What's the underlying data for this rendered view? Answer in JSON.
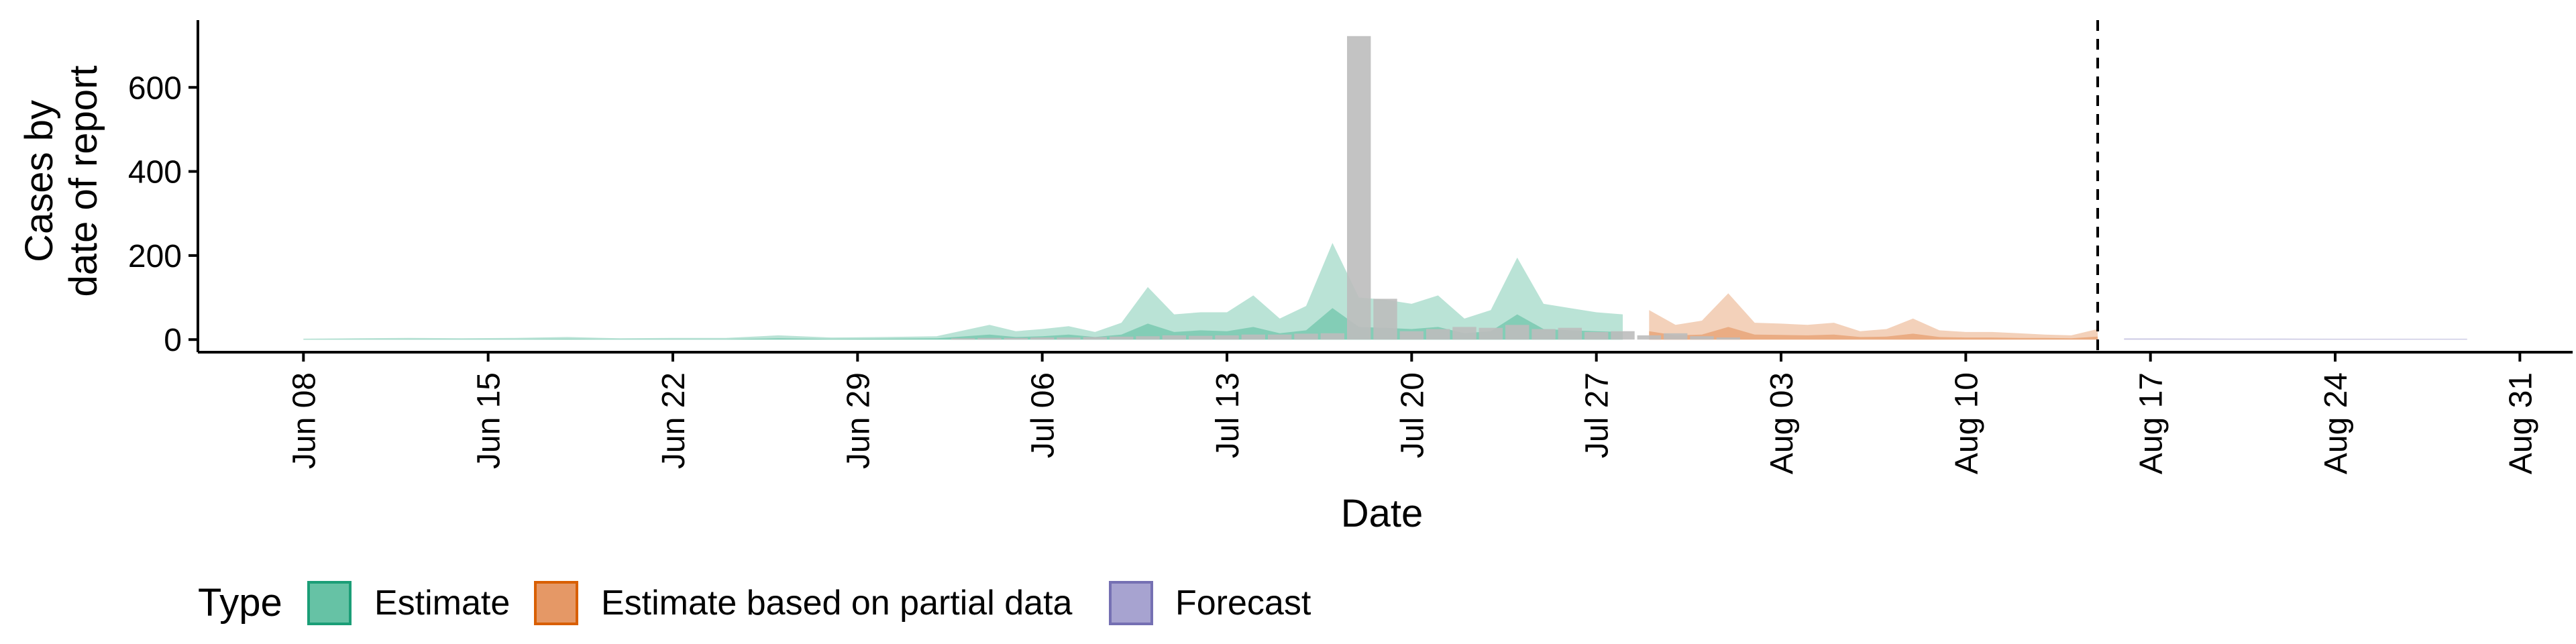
{
  "chart_data": {
    "type": "area",
    "xlabel": "Date",
    "ylabel": [
      "Cases by",
      "date of report"
    ],
    "ylim": [
      -30,
      760
    ],
    "yticks": [
      0,
      200,
      400,
      600
    ],
    "xlim": [
      "2020-06-04",
      "2020-09-02"
    ],
    "xtick_dates": [
      "2020-06-08",
      "2020-06-15",
      "2020-06-22",
      "2020-06-29",
      "2020-07-06",
      "2020-07-13",
      "2020-07-20",
      "2020-07-27",
      "2020-08-03",
      "2020-08-10",
      "2020-08-17",
      "2020-08-24",
      "2020-08-31"
    ],
    "xtick_labels": [
      "Jun 08",
      "Jun 15",
      "Jun 22",
      "Jun 29",
      "Jul 06",
      "Jul 13",
      "Jul 20",
      "Jul 27",
      "Aug 03",
      "Aug 10",
      "Aug 17",
      "Aug 24",
      "Aug 31"
    ],
    "forecast_date": "2020-08-15",
    "grid": false,
    "legend_position": "bottom-left",
    "legend": {
      "title": "Type",
      "items": [
        {
          "label": "Estimate",
          "fill": "#66c2a5",
          "stroke": "#1b9e77"
        },
        {
          "label": "Estimate based on partial data",
          "fill": "#e59866",
          "stroke": "#d95f02"
        },
        {
          "label": "Forecast",
          "fill": "#a7a3d0",
          "stroke": "#7570b3"
        }
      ]
    },
    "reported_cases": {
      "color": "#bdbdbd",
      "dates": [
        "2020-07-03",
        "2020-07-04",
        "2020-07-05",
        "2020-07-06",
        "2020-07-07",
        "2020-07-08",
        "2020-07-09",
        "2020-07-10",
        "2020-07-11",
        "2020-07-12",
        "2020-07-13",
        "2020-07-14",
        "2020-07-15",
        "2020-07-16",
        "2020-07-17",
        "2020-07-18",
        "2020-07-19",
        "2020-07-20",
        "2020-07-21",
        "2020-07-22",
        "2020-07-23",
        "2020-07-24",
        "2020-07-25",
        "2020-07-26",
        "2020-07-27",
        "2020-07-28",
        "2020-07-29",
        "2020-07-30",
        "2020-07-31",
        "2020-08-01"
      ],
      "values": [
        3,
        4,
        4,
        5,
        5,
        6,
        7,
        8,
        10,
        9,
        10,
        12,
        12,
        14,
        15,
        722,
        97,
        20,
        25,
        30,
        28,
        35,
        25,
        28,
        18,
        20,
        10,
        15,
        8,
        5
      ]
    },
    "series": [
      {
        "name": "Estimate",
        "dates": [
          "2020-06-08",
          "2020-06-10",
          "2020-06-12",
          "2020-06-14",
          "2020-06-16",
          "2020-06-18",
          "2020-06-20",
          "2020-06-22",
          "2020-06-24",
          "2020-06-26",
          "2020-06-28",
          "2020-06-30",
          "2020-07-02",
          "2020-07-04",
          "2020-07-05",
          "2020-07-06",
          "2020-07-07",
          "2020-07-08",
          "2020-07-09",
          "2020-07-10",
          "2020-07-11",
          "2020-07-12",
          "2020-07-13",
          "2020-07-14",
          "2020-07-15",
          "2020-07-16",
          "2020-07-17",
          "2020-07-18",
          "2020-07-19",
          "2020-07-20",
          "2020-07-21",
          "2020-07-22",
          "2020-07-23",
          "2020-07-24",
          "2020-07-25",
          "2020-07-26",
          "2020-07-27",
          "2020-07-28"
        ],
        "upper": [
          2,
          3,
          4,
          3,
          4,
          6,
          3,
          4,
          4,
          10,
          5,
          6,
          8,
          35,
          20,
          25,
          32,
          18,
          40,
          125,
          60,
          65,
          65,
          105,
          50,
          80,
          230,
          100,
          95,
          85,
          105,
          50,
          70,
          195,
          85,
          75,
          65,
          60
        ],
        "median": [
          0.5,
          0.8,
          1,
          1,
          1,
          1.5,
          1,
          1,
          1,
          3,
          1.5,
          2,
          3,
          12,
          6,
          8,
          12,
          6,
          12,
          38,
          18,
          22,
          20,
          30,
          15,
          22,
          75,
          30,
          28,
          25,
          30,
          15,
          20,
          60,
          25,
          22,
          20,
          18
        ],
        "lower": [
          0,
          0,
          0,
          0,
          0,
          0,
          0,
          0,
          0,
          0,
          0,
          0,
          0,
          0,
          0,
          0,
          0,
          0,
          0,
          0,
          0,
          0,
          0,
          0,
          0,
          0,
          0,
          0,
          0,
          0,
          0,
          0,
          0,
          0,
          0,
          0,
          0,
          0
        ]
      },
      {
        "name": "Estimate based on partial data",
        "dates": [
          "2020-07-29",
          "2020-07-30",
          "2020-07-31",
          "2020-08-01",
          "2020-08-02",
          "2020-08-03",
          "2020-08-04",
          "2020-08-05",
          "2020-08-06",
          "2020-08-07",
          "2020-08-08",
          "2020-08-09",
          "2020-08-10",
          "2020-08-11",
          "2020-08-12",
          "2020-08-13",
          "2020-08-14",
          "2020-08-15"
        ],
        "upper": [
          70,
          35,
          45,
          110,
          40,
          38,
          35,
          40,
          20,
          25,
          50,
          22,
          18,
          18,
          15,
          12,
          10,
          25
        ],
        "median": [
          20,
          10,
          12,
          30,
          12,
          11,
          10,
          12,
          6,
          7,
          14,
          6,
          5,
          5,
          4,
          4,
          3,
          7
        ],
        "lower": [
          0,
          0,
          0,
          0,
          0,
          0,
          0,
          0,
          0,
          0,
          0,
          0,
          0,
          0,
          0,
          0,
          0,
          0
        ]
      },
      {
        "name": "Forecast",
        "dates": [
          "2020-08-16",
          "2020-08-18",
          "2020-08-20",
          "2020-08-22",
          "2020-08-24",
          "2020-08-26",
          "2020-08-28",
          "2020-08-29"
        ],
        "upper": [
          3,
          3,
          2.5,
          2.5,
          2,
          2,
          2,
          2
        ],
        "median": [
          1,
          1,
          1,
          1,
          1,
          1,
          0.8,
          0.8
        ],
        "lower": [
          0,
          0,
          0,
          0,
          0,
          0,
          0,
          0
        ]
      }
    ]
  }
}
